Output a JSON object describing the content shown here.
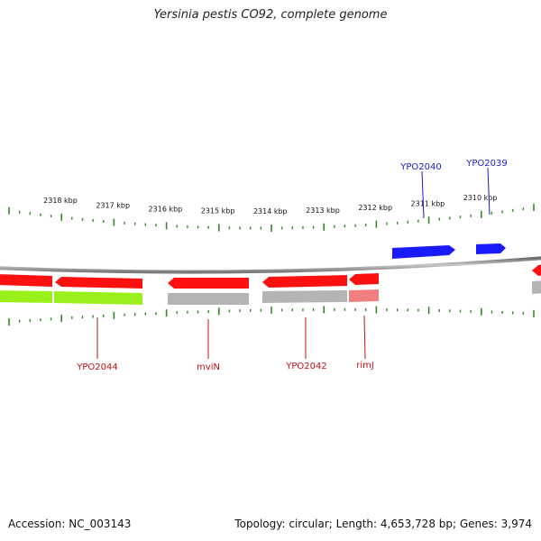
{
  "title": "Yersinia pestis CO92, complete genome",
  "footer": {
    "accession": "Accession: NC_003143",
    "topology": "Topology: circular; Length: 4,653,728 bp; Genes: 3,974"
  },
  "scale": {
    "unit": "kbp",
    "ticks": [
      {
        "value": 2318,
        "label": "2318 kbp"
      },
      {
        "value": 2317,
        "label": "2317 kbp"
      },
      {
        "value": 2316,
        "label": "2316 kbp"
      },
      {
        "value": 2315,
        "label": "2315 kbp"
      },
      {
        "value": 2314,
        "label": "2314 kbp"
      },
      {
        "value": 2313,
        "label": "2313 kbp"
      },
      {
        "value": 2312,
        "label": "2312 kbp"
      },
      {
        "value": 2311,
        "label": "2311 kbp"
      },
      {
        "value": 2310,
        "label": "2310 kbp"
      }
    ]
  },
  "genes_forward": [
    {
      "label": "YPO2040",
      "start_kbp": 2311.45,
      "end_kbp": 2310.2
    },
    {
      "label": "YPO2039",
      "start_kbp": 2310.0,
      "end_kbp": 2309.45
    }
  ],
  "genes_reverse": [
    {
      "label": "YPO2044",
      "start_kbp": 2317.95,
      "end_kbp": 2316.35
    },
    {
      "label": "mviN",
      "start_kbp": 2315.65,
      "end_kbp": 2314.25
    },
    {
      "label": "YPO2042",
      "start_kbp": 2313.95,
      "end_kbp": 2312.35
    },
    {
      "label": "rimJ",
      "start_kbp": 2312.3,
      "end_kbp": 2311.8
    }
  ],
  "colors": {
    "forward_gene": "#1a1aff",
    "reverse_gene": "#ff1010",
    "label_forward": "#1a1ad0",
    "label_reverse": "#c01010",
    "tick": "#2e8b22",
    "backbone": "#808080",
    "feature_green": "#9af01a",
    "feature_grey": "#b4b4b4",
    "feature_pink": "#f08080"
  }
}
